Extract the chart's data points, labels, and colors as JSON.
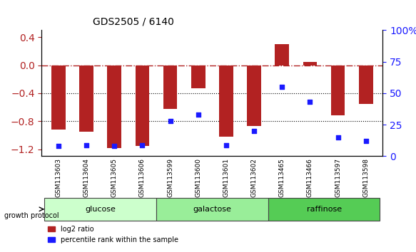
{
  "title": "GDS2505 / 6140",
  "samples": [
    "GSM113603",
    "GSM113604",
    "GSM113605",
    "GSM113606",
    "GSM113599",
    "GSM113600",
    "GSM113601",
    "GSM113602",
    "GSM113465",
    "GSM113466",
    "GSM113597",
    "GSM113598"
  ],
  "log2_ratio": [
    -0.92,
    -0.95,
    -1.18,
    -1.15,
    -0.62,
    -0.33,
    -1.02,
    -0.87,
    0.3,
    0.05,
    -0.72,
    -0.55
  ],
  "percentile_rank": [
    8,
    9,
    8,
    9,
    28,
    33,
    9,
    20,
    55,
    43,
    15,
    12
  ],
  "groups": [
    {
      "label": "glucose",
      "start": 0,
      "end": 4,
      "color": "#ccffcc"
    },
    {
      "label": "galactose",
      "start": 4,
      "end": 8,
      "color": "#99ee99"
    },
    {
      "label": "raffinose",
      "start": 8,
      "end": 12,
      "color": "#55cc55"
    }
  ],
  "bar_color": "#b22222",
  "dot_color": "#1a1aff",
  "ylim_left": [
    -1.3,
    0.5
  ],
  "ylim_right": [
    0,
    100
  ],
  "yticks_left": [
    -1.2,
    -0.8,
    -0.4,
    0.0,
    0.4
  ],
  "yticks_right": [
    0,
    25,
    50,
    75,
    100
  ],
  "hline_y": 0.0,
  "dotted_lines": [
    -0.4,
    -0.8
  ],
  "background_color": "#ffffff",
  "bar_width": 0.5
}
